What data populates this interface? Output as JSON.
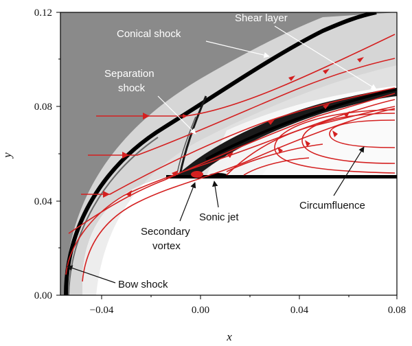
{
  "figure": {
    "x_axis": {
      "label": "x",
      "ticks": [
        "−0.04",
        "0.00",
        "0.04",
        "0.08"
      ]
    },
    "y_axis": {
      "label": "y",
      "ticks": [
        "0.00",
        "0.04",
        "0.08",
        "0.12"
      ]
    },
    "annotations": {
      "conical_shock": "Conical shock",
      "shear_layer": "Shear layer",
      "separation_shock_1": "Separation",
      "separation_shock_2": "shock",
      "secondary_vortex_1": "Secondary",
      "secondary_vortex_2": "vortex",
      "sonic_jet": "Sonic jet",
      "circumfluence": "Circumfluence",
      "bow_shock": "Bow shock"
    },
    "colors": {
      "streamline": "#d42020",
      "background_field": "#8a8a8a"
    }
  }
}
